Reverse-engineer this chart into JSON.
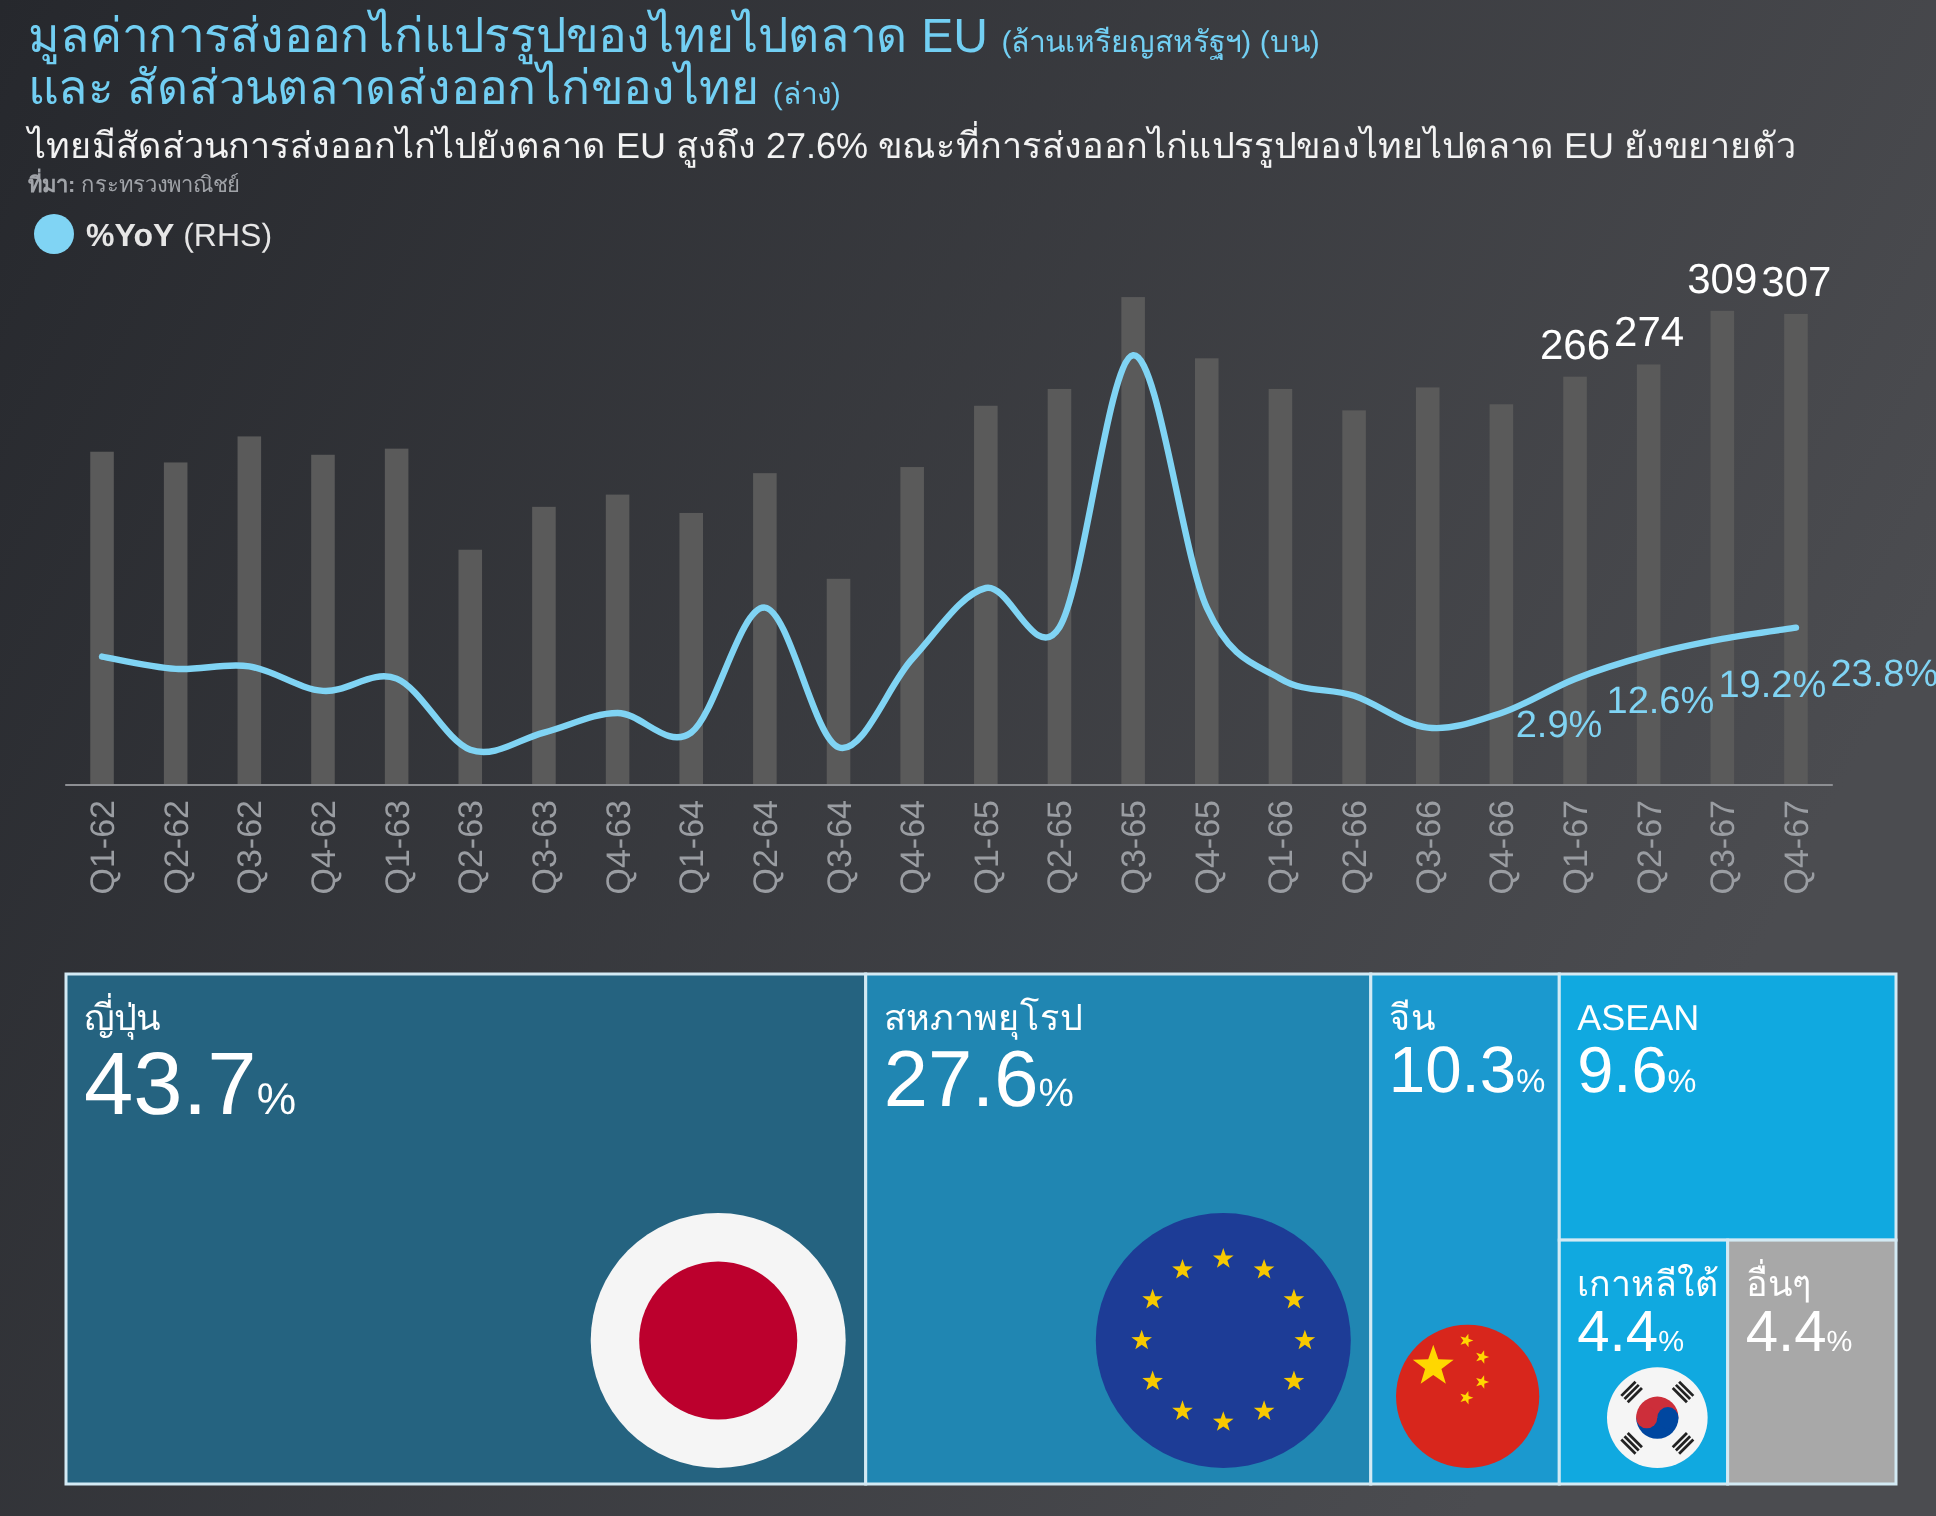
{
  "chart_data": [
    {
      "type": "bar",
      "title": "มูลค่าการส่งออกไก่แปรรูปของไทยไปตลาด EU (ล้านเหรียญสหรัฐฯ) (บน)",
      "subtitle": "ไทยมีสัดส่วนการส่งออกไก่ไปยังตลาด EU สูงถึง 27.6% ขณะที่การส่งออกไก่แปรรูปของไทยไปตลาด EU ยังขยายตัว",
      "annotations": [
        "**ที่มา:** กระทรวงพาณิชย์"
      ],
      "categories": [
        "Q1-62",
        "Q2-62",
        "Q3-62",
        "Q4-62",
        "Q1-63",
        "Q2-63",
        "Q3-63",
        "Q4-63",
        "Q1-64",
        "Q2-64",
        "Q3-64",
        "Q4-64",
        "Q1-65",
        "Q2-65",
        "Q3-65",
        "Q4-65",
        "Q1-66",
        "Q2-66",
        "Q3-66",
        "Q4-66",
        "Q1-67",
        "Q2-67",
        "Q3-67",
        "Q4-67"
      ],
      "series": [
        {
          "type": "bar",
          "color": "#5a5a5a",
          "values": [
            217,
            210,
            227,
            215,
            219,
            153,
            181,
            189,
            177,
            203,
            134,
            207,
            247,
            258,
            318,
            278,
            258,
            244,
            259,
            248,
            266,
            274,
            309,
            307
          ],
          "value_labels": [
            null,
            null,
            null,
            null,
            null,
            null,
            null,
            null,
            null,
            null,
            null,
            null,
            null,
            null,
            null,
            null,
            null,
            null,
            null,
            null,
            "266",
            "274",
            "309",
            "307"
          ]
        },
        {
          "type": "line",
          "name": "**%YoY** (RHS)",
          "color": "#80d4f4",
          "axis": "y2",
          "values": [
            12,
            7,
            8,
            -2,
            3,
            -26,
            -19,
            -11,
            -19,
            32,
            -25,
            11,
            40,
            24,
            135,
            32,
            3,
            -4,
            -17,
            -11,
            2.9,
            12.6,
            19.2,
            23.8
          ],
          "value_labels": [
            null,
            null,
            null,
            null,
            null,
            null,
            null,
            null,
            null,
            null,
            null,
            null,
            null,
            null,
            null,
            null,
            null,
            null,
            null,
            null,
            "2.9%",
            "12.6%",
            "19.2%",
            "23.8%"
          ]
        }
      ],
      "ylim": [
        0,
        320
      ],
      "y2lim": [
        -40,
        160
      ],
      "tick_labels": "x",
      "legend": "top left"
    },
    {
      "type": "other",
      "title": "และ สัดส่วนตลาดส่งออกไก่ของไทย (ล่าง)",
      "categories": [
        "ญี่ปุ่น",
        "สหภาพยุโรป",
        "จีน",
        "ASEAN",
        "เกาหลีใต้",
        "อื่นๆ"
      ],
      "values": [
        43.7,
        27.6,
        10.3,
        9.6,
        4.4,
        4.4
      ],
      "colors": [
        "#256380",
        "#2086b2",
        "#1b99cf",
        "#10a9e0",
        "#10a9e0",
        "#a8a8a8"
      ],
      "value_labels": [
        "43.7%",
        "27.6%",
        "10.3%",
        "9.6%",
        "4.4%",
        "4.4%"
      ]
    }
  ]
}
